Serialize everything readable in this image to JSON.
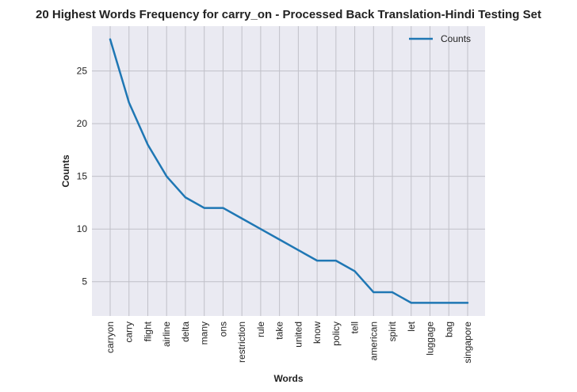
{
  "chart_data": {
    "type": "line",
    "title": "20 Highest Words Frequency for carry_on - Processed Back Translation-Hindi Testing Set",
    "xlabel": "Words",
    "ylabel": "Counts",
    "categories": [
      "carryon",
      "carry",
      "flight",
      "airline",
      "delta",
      "many",
      "ons",
      "restriction",
      "rule",
      "take",
      "united",
      "know",
      "policy",
      "tell",
      "american",
      "spirit",
      "let",
      "luggage",
      "bag",
      "singapore"
    ],
    "series": [
      {
        "name": "Counts",
        "values": [
          28,
          22,
          18,
          15,
          13,
          12,
          12,
          11,
          10,
          9,
          8,
          7,
          7,
          6,
          4,
          4,
          3,
          3,
          3,
          3
        ],
        "color": "#1f77b4"
      }
    ],
    "ylim": [
      1.75,
      29.25
    ],
    "yticks": [
      5,
      10,
      15,
      20,
      25
    ],
    "grid": true,
    "legend_position": "top-right",
    "background": "#eaeaf2",
    "grid_color": "#c0c0c8"
  }
}
